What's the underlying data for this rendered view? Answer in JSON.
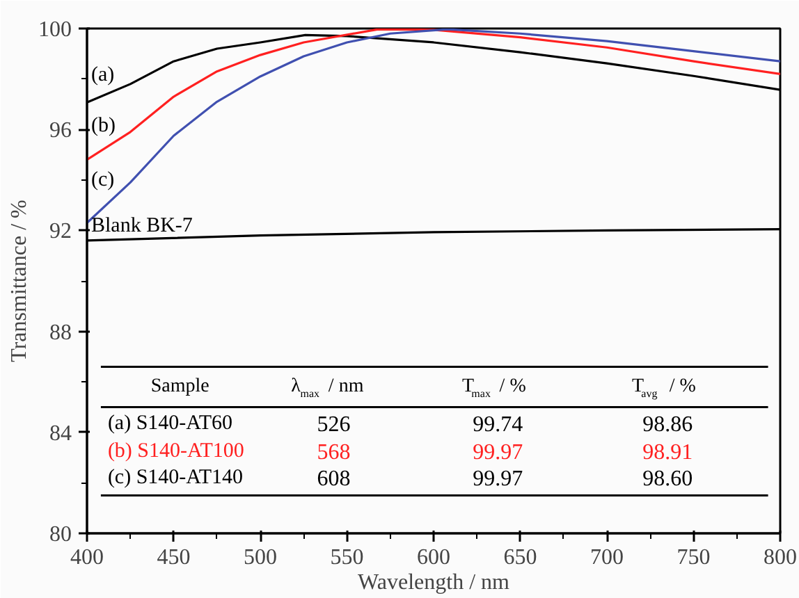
{
  "chart_data": {
    "type": "line",
    "xlabel": "Wavelength / nm",
    "ylabel": "Transmittance / %",
    "xlim": [
      400,
      800
    ],
    "ylim": [
      80,
      100
    ],
    "xticks": [
      400,
      450,
      500,
      550,
      600,
      650,
      700,
      750,
      800
    ],
    "yticks": [
      80,
      84,
      88,
      92,
      96,
      100
    ],
    "grid": false,
    "legend": false,
    "marker": "none",
    "line_style": "solid",
    "series": [
      {
        "name": "(a)",
        "color": "#000000",
        "x": [
          400,
          425,
          450,
          475,
          500,
          526,
          550,
          600,
          650,
          700,
          750,
          800
        ],
        "values": [
          97.07,
          97.8,
          98.7,
          99.2,
          99.45,
          99.74,
          99.7,
          99.45,
          99.06,
          98.62,
          98.12,
          97.57
        ]
      },
      {
        "name": "(b)",
        "color": "#ff2020",
        "x": [
          400,
          425,
          450,
          475,
          500,
          525,
          568,
          600,
          650,
          700,
          750,
          800
        ],
        "values": [
          94.8,
          95.9,
          97.3,
          98.3,
          98.95,
          99.45,
          99.97,
          99.95,
          99.65,
          99.25,
          98.7,
          98.2
        ]
      },
      {
        "name": "(c)",
        "color": "#4050b0",
        "x": [
          400,
          425,
          450,
          475,
          500,
          525,
          550,
          575,
          608,
          650,
          700,
          750,
          800
        ],
        "values": [
          92.3,
          93.9,
          95.75,
          97.1,
          98.1,
          98.9,
          99.45,
          99.8,
          99.97,
          99.8,
          99.5,
          99.1,
          98.7
        ]
      },
      {
        "name": "Blank BK-7",
        "color": "#000000",
        "x": [
          400,
          500,
          600,
          700,
          800
        ],
        "values": [
          91.6,
          91.8,
          91.93,
          92.0,
          92.05
        ]
      }
    ],
    "annotations": [
      "Sample",
      "λ$_{max}$ / nm",
      "T$_{max}$ / %",
      "T$_{avg}$ / %",
      "(a) S140-AT60",
      "526",
      "99.74",
      "98.86",
      "(b) S140-AT100",
      "568",
      "99.97",
      "98.91",
      "(c) S140-AT140",
      "608",
      "99.97",
      "98.60"
    ]
  }
}
